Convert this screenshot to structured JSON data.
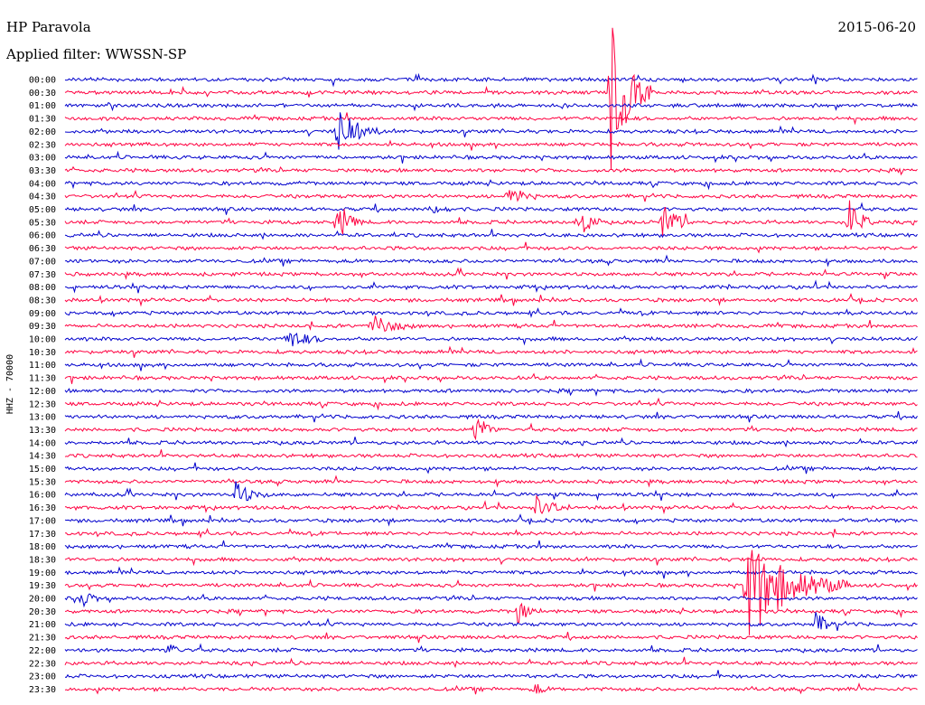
{
  "header": {
    "station": "HP Paravola",
    "filter": "Applied filter: WWSSN-SP",
    "date": "2015-06-20"
  },
  "chart_data": {
    "type": "line",
    "title": "HP Paravola",
    "subtitle": "Applied filter: WWSSN-SP",
    "date": "2015-06-20",
    "ylabel": "HHZ - 70000",
    "rows": [
      "00:00",
      "00:30",
      "01:00",
      "01:30",
      "02:00",
      "02:30",
      "03:00",
      "03:30",
      "04:00",
      "04:30",
      "05:00",
      "05:30",
      "06:00",
      "06:30",
      "07:00",
      "07:30",
      "08:00",
      "08:30",
      "09:00",
      "09:30",
      "10:00",
      "10:30",
      "11:00",
      "11:30",
      "12:00",
      "12:30",
      "13:00",
      "13:30",
      "14:00",
      "14:30",
      "15:00",
      "15:30",
      "16:00",
      "16:30",
      "17:00",
      "17:30",
      "18:00",
      "18:30",
      "19:00",
      "19:30",
      "20:00",
      "20:30",
      "21:00",
      "21:30",
      "22:00",
      "22:30",
      "23:00",
      "23:30"
    ],
    "colors": [
      "#0000cc",
      "#ff0040"
    ],
    "events": [
      {
        "row": 1,
        "x": 0.64,
        "amp": 95,
        "dur": 0.05
      },
      {
        "row": 4,
        "x": 0.32,
        "amp": 30,
        "dur": 0.05
      },
      {
        "row": 9,
        "x": 0.52,
        "amp": 12,
        "dur": 0.04
      },
      {
        "row": 10,
        "x": 0.43,
        "amp": 8,
        "dur": 0.03
      },
      {
        "row": 11,
        "x": 0.32,
        "amp": 25,
        "dur": 0.03
      },
      {
        "row": 11,
        "x": 0.6,
        "amp": 25,
        "dur": 0.03
      },
      {
        "row": 11,
        "x": 0.7,
        "amp": 22,
        "dur": 0.04
      },
      {
        "row": 11,
        "x": 0.92,
        "amp": 30,
        "dur": 0.03
      },
      {
        "row": 19,
        "x": 0.36,
        "amp": 16,
        "dur": 0.05
      },
      {
        "row": 20,
        "x": 0.26,
        "amp": 12,
        "dur": 0.05
      },
      {
        "row": 27,
        "x": 0.48,
        "amp": 22,
        "dur": 0.03
      },
      {
        "row": 32,
        "x": 0.2,
        "amp": 14,
        "dur": 0.04
      },
      {
        "row": 33,
        "x": 0.55,
        "amp": 14,
        "dur": 0.05
      },
      {
        "row": 39,
        "x": 0.8,
        "amp": 60,
        "dur": 0.12
      },
      {
        "row": 40,
        "x": 0.02,
        "amp": 14,
        "dur": 0.02
      },
      {
        "row": 41,
        "x": 0.53,
        "amp": 14,
        "dur": 0.03
      },
      {
        "row": 42,
        "x": 0.88,
        "amp": 14,
        "dur": 0.03
      },
      {
        "row": 44,
        "x": 0.12,
        "amp": 8,
        "dur": 0.03
      },
      {
        "row": 47,
        "x": 0.55,
        "amp": 8,
        "dur": 0.02
      }
    ]
  }
}
